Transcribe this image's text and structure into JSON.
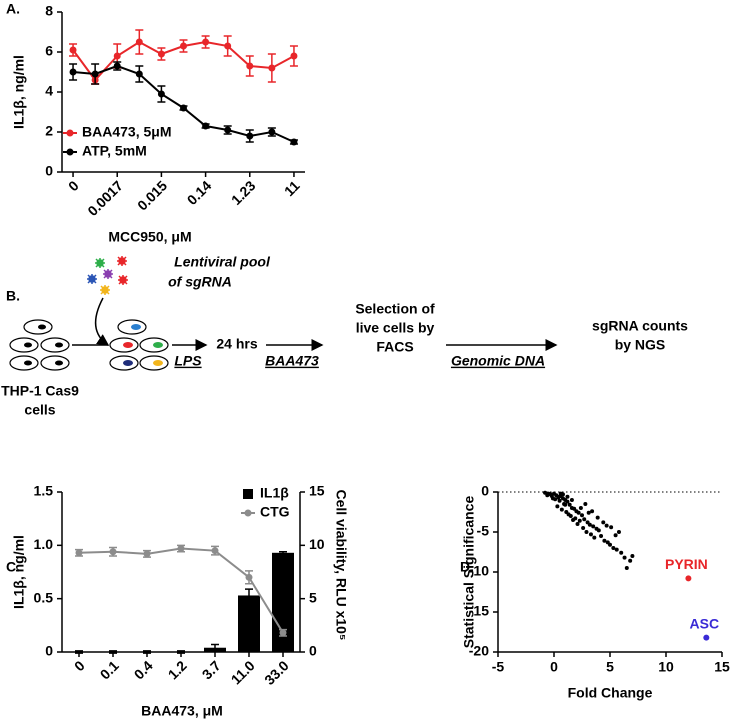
{
  "chart_data": [
    {
      "type": "line",
      "panel": "A.",
      "categories": [
        "0",
        null,
        "0.0017",
        null,
        "0.015",
        null,
        "0.14",
        null,
        "1.23",
        null,
        "11"
      ],
      "xlabel": "MCC950, μM",
      "ylabel": "IL1β, ng/ml",
      "ylim": [
        0,
        8
      ],
      "yticks": [
        0,
        2,
        4,
        6,
        8
      ],
      "series": [
        {
          "name": "BAA473, 5μM",
          "color": "#e8262a",
          "values": [
            6.1,
            4.6,
            5.8,
            6.5,
            5.9,
            6.3,
            6.5,
            6.3,
            5.3,
            5.2,
            5.8
          ],
          "errors": [
            0.3,
            0.2,
            0.6,
            0.6,
            0.3,
            0.3,
            0.3,
            0.5,
            0.5,
            0.7,
            0.5
          ]
        },
        {
          "name": "ATP, 5mM",
          "color": "#000000",
          "values": [
            5.0,
            4.9,
            5.3,
            4.9,
            3.9,
            3.2,
            2.3,
            2.1,
            1.8,
            2.0,
            1.5
          ],
          "errors": [
            0.4,
            0.5,
            0.2,
            0.4,
            0.4,
            0.1,
            0.1,
            0.2,
            0.3,
            0.2,
            0.1
          ]
        }
      ]
    },
    {
      "type": "bar",
      "panel": "C.",
      "categories": [
        "0",
        "0.1",
        "0.4",
        "1.2",
        "3.7",
        "11.0",
        "33.0"
      ],
      "xlabel": "BAA473, μM",
      "ylabel": "IL1β, ng/ml",
      "y2label": "Cell viability, RLU x10⁵",
      "ylim": [
        0,
        1.5
      ],
      "yticks": [
        0,
        0.5,
        {
          "value": 1,
          "label": "1.0"
        },
        1.5
      ],
      "y2lim": [
        0,
        15
      ],
      "y2ticks": [
        0,
        5,
        10,
        15
      ],
      "series": [
        {
          "name": "IL1β",
          "type": "bar",
          "color": "#000000",
          "values": [
            0,
            0,
            0,
            0,
            0.04,
            0.53,
            0.93
          ],
          "errors": [
            0.01,
            0.01,
            0.01,
            0.01,
            0.03,
            0.06,
            0.01
          ]
        },
        {
          "name": "CTG",
          "type": "line",
          "axis": "y2",
          "color": "#8c8c8c",
          "values": [
            9.3,
            9.4,
            9.2,
            9.7,
            9.5,
            7.0,
            1.8
          ],
          "errors": [
            0.3,
            0.4,
            0.3,
            0.3,
            0.4,
            0.6,
            0.3
          ]
        }
      ]
    },
    {
      "type": "scatter",
      "panel": "D.",
      "xlabel": "Fold Change",
      "ylabel": "Statistical Significance",
      "xlim": [
        -5,
        15
      ],
      "ylim": [
        -20,
        0
      ],
      "xticks": [
        -5,
        0,
        5,
        10,
        15
      ],
      "yticks": [
        -20,
        -15,
        -10,
        -5,
        0
      ],
      "reference_line": 0,
      "series": [
        {
          "color": "#000000",
          "x": [
            -0.8,
            -0.5,
            -0.3,
            0,
            0.2,
            0.4,
            0.6,
            0.8,
            1,
            1.2,
            -0.2,
            0.1,
            0.5,
            0.9,
            1.4,
            1.6,
            1.8,
            2,
            2.2,
            2.5,
            0.3,
            0.7,
            1.1,
            1.5,
            1.9,
            2.3,
            2.7,
            3,
            3.2,
            3.5,
            3.8,
            4,
            1,
            1.3,
            1.7,
            2.1,
            2.6,
            2.9,
            3.3,
            3.6,
            4.2,
            4.5,
            4.8,
            5,
            5.3,
            5.6,
            6,
            6.3,
            6.5,
            7,
            2.4,
            3.1,
            3.9,
            4.4,
            5.1,
            5.8,
            0.4,
            0.8,
            1.6,
            2.8,
            -0.6,
            -0.1,
            0.6,
            1.2,
            3.4,
            4.7,
            5.5,
            6.8
          ],
          "y": [
            -0.1,
            -0.2,
            -0.3,
            -0.2,
            -0.4,
            -0.6,
            -0.5,
            -0.8,
            -1,
            -1.2,
            -0.5,
            -0.9,
            -1.1,
            -1.5,
            -1.6,
            -2,
            -2.1,
            -2.4,
            -2.6,
            -2.9,
            -1.8,
            -2.2,
            -2.5,
            -3,
            -3.3,
            -3.6,
            -3.4,
            -3.8,
            -4.1,
            -4.3,
            -4.6,
            -4.8,
            -1.6,
            -2.8,
            -3.5,
            -4,
            -4.5,
            -5,
            -5.3,
            -5.7,
            -5.5,
            -6.1,
            -6.3,
            -6.6,
            -7,
            -7.2,
            -7.6,
            -8.2,
            -9.5,
            -8,
            -2,
            -2.6,
            -3.2,
            -3.8,
            -4.4,
            -5,
            -0.7,
            -0.3,
            -1,
            -1.5,
            -0.4,
            -0.8,
            -0.2,
            -0.6,
            -2.4,
            -4.2,
            -5.4,
            -8.6
          ]
        },
        {
          "color": "#e8262a",
          "x": [
            12
          ],
          "y": [
            -10.8
          ],
          "labels": [
            "PYRIN"
          ]
        },
        {
          "color": "#3a2bd6",
          "x": [
            13.6
          ],
          "y": [
            -18.2
          ],
          "labels": [
            "ASC"
          ]
        }
      ]
    }
  ],
  "diagram": {
    "panel": "B.",
    "pool_label": [
      "Lentiviral pool",
      "of sgRNA"
    ],
    "start_label": [
      "THP-1 Cas9",
      "cells"
    ],
    "arrows": [
      {
        "label": "LPS"
      },
      {
        "label": "BAA473"
      },
      {
        "label": "Genomic DNA"
      }
    ],
    "nodes": [
      {
        "label": [
          "24 hrs"
        ]
      },
      {
        "label": [
          "Selection of",
          "live cells by",
          "FACS"
        ]
      },
      {
        "label": [
          "sgRNA counts",
          "by NGS"
        ]
      }
    ]
  }
}
